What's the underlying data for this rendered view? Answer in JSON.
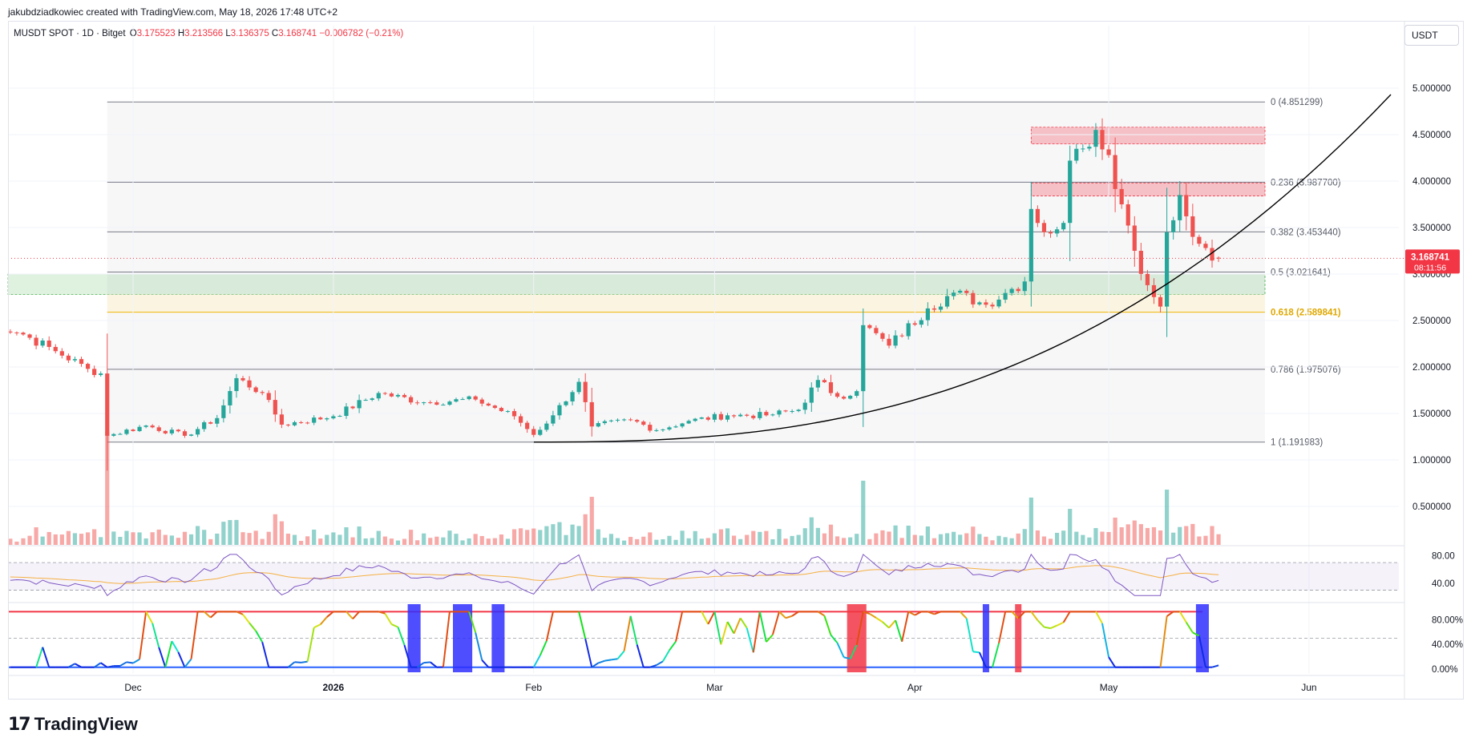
{
  "header": {
    "attribution": "jakubdziadkowiec created with TradingView.com, May 18, 2026 17:48 UTC+2",
    "symbol": "MUSDT SPOT · 1D · Bitget",
    "ohlc": [
      {
        "key": "O",
        "value": "3.175523"
      },
      {
        "key": "H",
        "value": "3.213566"
      },
      {
        "key": "L",
        "value": "3.136375"
      },
      {
        "key": "C",
        "value": "3.168741"
      }
    ],
    "change": "−0.006782 (−0.21%)"
  },
  "unit_button": "USDT",
  "brand": {
    "logo": "17",
    "name": "TradingView"
  },
  "colors": {
    "up": "#26a69a",
    "down": "#ef5350",
    "price_label": "#f23645",
    "fib_golden": "#f2b705",
    "curve": "#000000",
    "rsi": "#7e57c2",
    "rsi_ma": "#f5b041"
  },
  "chart_data": [
    {
      "type": "candlestick",
      "title": "MUSDT SPOT · 1D · Bitget",
      "ylim": [
        0,
        5.3
      ],
      "y_ticks": [
        "5.000000",
        "4.500000",
        "4.000000",
        "3.500000",
        "3.000000",
        "2.500000",
        "2.000000",
        "1.500000",
        "1.000000",
        "0.500000"
      ],
      "x_ticks": [
        "Dec",
        "2026",
        "Feb",
        "Mar",
        "Apr",
        "May",
        "Jun"
      ],
      "current_price": "3.168741",
      "countdown": "08:11:56",
      "last_ohlc": {
        "open": 3.175523,
        "high": 3.213566,
        "low": 3.136375,
        "close": 3.168741
      },
      "close_path": [
        {
          "date": "2025-11-09",
          "close": 2.48
        },
        {
          "date": "2025-11-14",
          "close": 2.35
        },
        {
          "date": "2025-11-19",
          "close": 2.17
        },
        {
          "date": "2025-11-24",
          "close": 1.98
        },
        {
          "date": "2025-11-26",
          "close": 1.93
        },
        {
          "date": "2025-11-27",
          "close": 1.26
        },
        {
          "date": "2025-12-03",
          "close": 1.37
        },
        {
          "date": "2025-12-09",
          "close": 1.26
        },
        {
          "date": "2025-12-14",
          "close": 1.45
        },
        {
          "date": "2025-12-17",
          "close": 1.88
        },
        {
          "date": "2025-12-21",
          "close": 1.72
        },
        {
          "date": "2025-12-24",
          "close": 1.38
        },
        {
          "date": "2026-01-01",
          "close": 1.47
        },
        {
          "date": "2026-01-08",
          "close": 1.72
        },
        {
          "date": "2026-01-15",
          "close": 1.62
        },
        {
          "date": "2026-01-23",
          "close": 1.65
        },
        {
          "date": "2026-01-29",
          "close": 1.47
        },
        {
          "date": "2026-02-01",
          "close": 1.27
        },
        {
          "date": "2026-02-04",
          "close": 1.48
        },
        {
          "date": "2026-02-08",
          "close": 1.84
        },
        {
          "date": "2026-02-10",
          "close": 1.36
        },
        {
          "date": "2026-02-16",
          "close": 1.43
        },
        {
          "date": "2026-02-20",
          "close": 1.32
        },
        {
          "date": "2026-02-25",
          "close": 1.42
        },
        {
          "date": "2026-03-03",
          "close": 1.48
        },
        {
          "date": "2026-03-09",
          "close": 1.48
        },
        {
          "date": "2026-03-14",
          "close": 1.54
        },
        {
          "date": "2026-03-17",
          "close": 1.86
        },
        {
          "date": "2026-03-20",
          "close": 1.68
        },
        {
          "date": "2026-03-23",
          "close": 1.74
        },
        {
          "date": "2026-03-24",
          "close": 2.45
        },
        {
          "date": "2026-03-28",
          "close": 2.23
        },
        {
          "date": "2026-04-03",
          "close": 2.63
        },
        {
          "date": "2026-04-07",
          "close": 2.8
        },
        {
          "date": "2026-04-12",
          "close": 2.67
        },
        {
          "date": "2026-04-16",
          "close": 2.84
        },
        {
          "date": "2026-04-18",
          "close": 2.92
        },
        {
          "date": "2026-04-19",
          "close": 3.7
        },
        {
          "date": "2026-04-21",
          "close": 3.45
        },
        {
          "date": "2026-04-24",
          "close": 3.55
        },
        {
          "date": "2026-04-25",
          "close": 4.22
        },
        {
          "date": "2026-04-27",
          "close": 4.35
        },
        {
          "date": "2026-04-29",
          "close": 4.55
        },
        {
          "date": "2026-05-01",
          "close": 4.28
        },
        {
          "date": "2026-05-03",
          "close": 3.75
        },
        {
          "date": "2026-05-05",
          "close": 3.25
        },
        {
          "date": "2026-05-07",
          "close": 2.88
        },
        {
          "date": "2026-05-09",
          "close": 2.65
        },
        {
          "date": "2026-05-10",
          "close": 3.45
        },
        {
          "date": "2026-05-12",
          "close": 3.85
        },
        {
          "date": "2026-05-14",
          "close": 3.4
        },
        {
          "date": "2026-05-16",
          "close": 3.28
        },
        {
          "date": "2026-05-18",
          "close": 3.168741
        }
      ],
      "fib_levels": [
        {
          "ratio": "0",
          "price": 4.851299,
          "label": "0 (4.851299)"
        },
        {
          "ratio": "0.236",
          "price": 3.9877,
          "label": "0.236 (3.987700)"
        },
        {
          "ratio": "0.382",
          "price": 3.45344,
          "label": "0.382 (3.453440)"
        },
        {
          "ratio": "0.5",
          "price": 3.021641,
          "label": "0.5 (3.021641)"
        },
        {
          "ratio": "0.618",
          "price": 2.589841,
          "label": "0.618 (2.589841)"
        },
        {
          "ratio": "0.786",
          "price": 1.975076,
          "label": "0.786 (1.975076)"
        },
        {
          "ratio": "1",
          "price": 1.191983,
          "label": "1 (1.191983)"
        }
      ],
      "zones": [
        {
          "kind": "resistance",
          "from": 4.4,
          "to": 4.58
        },
        {
          "kind": "resistance",
          "from": 3.84,
          "to": 3.98
        },
        {
          "kind": "support",
          "from": 2.78,
          "to": 3.0
        },
        {
          "kind": "support-golden",
          "from": 2.59,
          "to": 2.78
        }
      ]
    },
    {
      "type": "line",
      "name": "RSI",
      "ylim": [
        20,
        90
      ],
      "y_ticks": [
        "80.00",
        "40.00"
      ],
      "bands": [
        70,
        30
      ]
    },
    {
      "type": "area",
      "name": "oscillator",
      "ylim": [
        0,
        100
      ],
      "y_ticks": [
        "80.00%",
        "40.00%",
        "0.00%"
      ]
    }
  ]
}
